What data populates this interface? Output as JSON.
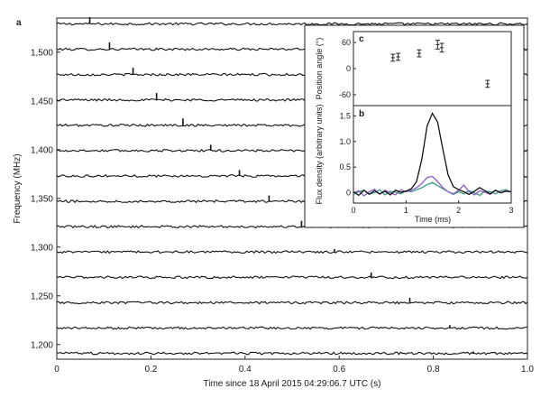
{
  "chart_data": [
    {
      "panel": "a",
      "type": "line",
      "xlabel": "Time since 18 April 2015 04:29:06.7 UTC (s)",
      "ylabel": "Frequency (MHz)",
      "xlim": [
        0,
        1.0
      ],
      "ylim": [
        1185,
        1535
      ],
      "x_ticks": [
        0,
        0.2,
        0.4,
        0.6,
        0.8,
        1.0
      ],
      "x_tick_labels": [
        "0",
        "0.2",
        "0.4",
        "0.6",
        "0.8",
        "1.0"
      ],
      "y_ticks": [
        1200,
        1250,
        1300,
        1350,
        1400,
        1450,
        1500
      ],
      "y_tick_labels": [
        "1,200",
        "1,250",
        "1,300",
        "1,350",
        "1,400",
        "1,450",
        "1,500"
      ],
      "channels_mhz": [
        1529,
        1503,
        1477,
        1451,
        1425,
        1399,
        1373,
        1347,
        1321,
        1295,
        1269,
        1243,
        1217,
        1191
      ],
      "pulse_times_s": [
        0.07,
        0.112,
        0.162,
        0.212,
        0.268,
        0.327,
        0.388,
        0.451,
        0.52,
        0.59,
        0.668,
        0.75,
        0.835,
        0.885
      ],
      "pulse_heights_mhz": [
        7,
        7,
        7,
        7,
        7,
        6,
        6,
        6,
        6,
        3,
        5,
        5,
        3,
        2
      ],
      "noise_amplitude_mhz": 1.2
    },
    {
      "panel": "c",
      "type": "scatter",
      "xlabel": "",
      "ylabel": "Position angle (°)",
      "ylim": [
        -85,
        85
      ],
      "y_ticks": [
        60,
        0,
        -60
      ],
      "y_tick_labels": [
        "60",
        "0",
        "-60"
      ],
      "x": [
        0.75,
        0.85,
        1.25,
        1.6,
        1.68,
        2.55
      ],
      "y": [
        25,
        27,
        35,
        55,
        48,
        -35
      ],
      "errors": [
        8,
        8,
        8,
        10,
        10,
        8
      ]
    },
    {
      "panel": "b",
      "type": "line",
      "xlabel": "Time (ms)",
      "ylabel": "Flux density (arbitrary units)",
      "xlim": [
        0,
        3
      ],
      "ylim": [
        -0.2,
        1.7
      ],
      "x_ticks": [
        0,
        1,
        2,
        3
      ],
      "x_tick_labels": [
        "0",
        "1",
        "2",
        "3"
      ],
      "y_ticks": [
        0,
        0.5,
        1.0,
        1.5
      ],
      "y_tick_labels": [
        "0",
        "0.5",
        "1.0",
        "1.5"
      ],
      "series": [
        {
          "color": "#111111",
          "x": [
            0,
            0.1,
            0.2,
            0.3,
            0.4,
            0.5,
            0.6,
            0.7,
            0.8,
            0.9,
            1.0,
            1.1,
            1.2,
            1.3,
            1.4,
            1.5,
            1.6,
            1.7,
            1.8,
            1.9,
            2.0,
            2.1,
            2.2,
            2.3,
            2.4,
            2.5,
            2.6,
            2.7,
            2.8,
            2.9,
            3.0
          ],
          "y": [
            0.02,
            -0.05,
            0.05,
            -0.03,
            0.04,
            -0.02,
            0.03,
            -0.04,
            0.05,
            0.01,
            0.03,
            0.08,
            0.22,
            0.65,
            1.3,
            1.55,
            1.38,
            0.85,
            0.35,
            0.12,
            0.06,
            0.02,
            -0.03,
            0.03,
            0.1,
            0.04,
            -0.02,
            0.05,
            0.0,
            0.03,
            0.02
          ]
        },
        {
          "color": "#8b5fbf",
          "x": [
            0,
            0.1,
            0.2,
            0.3,
            0.4,
            0.5,
            0.6,
            0.7,
            0.8,
            0.9,
            1.0,
            1.1,
            1.2,
            1.3,
            1.4,
            1.5,
            1.6,
            1.7,
            1.8,
            1.9,
            2.0,
            2.1,
            2.2,
            2.3,
            2.4,
            2.5,
            2.6,
            2.7,
            2.8,
            2.9,
            3.0
          ],
          "y": [
            0.0,
            0.04,
            -0.06,
            0.02,
            0.07,
            -0.03,
            0.05,
            0.0,
            -0.04,
            0.06,
            0.02,
            0.05,
            0.1,
            0.18,
            0.3,
            0.32,
            0.22,
            0.1,
            0.02,
            -0.02,
            0.05,
            0.15,
            0.02,
            -0.04,
            0.04,
            0.01,
            -0.03,
            0.05,
            0.0,
            0.04,
            0.02
          ]
        },
        {
          "color": "#3a9a8a",
          "x": [
            0,
            0.1,
            0.2,
            0.3,
            0.4,
            0.5,
            0.6,
            0.7,
            0.8,
            0.9,
            1.0,
            1.1,
            1.2,
            1.3,
            1.4,
            1.5,
            1.6,
            1.7,
            1.8,
            1.9,
            2.0,
            2.1,
            2.2,
            2.3,
            2.4,
            2.5,
            2.6,
            2.7,
            2.8,
            2.9,
            3.0
          ],
          "y": [
            -0.03,
            0.02,
            0.05,
            -0.02,
            0.0,
            0.06,
            -0.04,
            0.03,
            0.01,
            -0.02,
            0.04,
            0.02,
            0.06,
            0.1,
            0.16,
            0.2,
            0.14,
            0.08,
            0.02,
            -0.03,
            0.02,
            -0.02,
            0.04,
            0.0,
            -0.05,
            0.03,
            0.02,
            -0.02,
            0.04,
            0.06,
            0.01
          ]
        }
      ]
    }
  ]
}
